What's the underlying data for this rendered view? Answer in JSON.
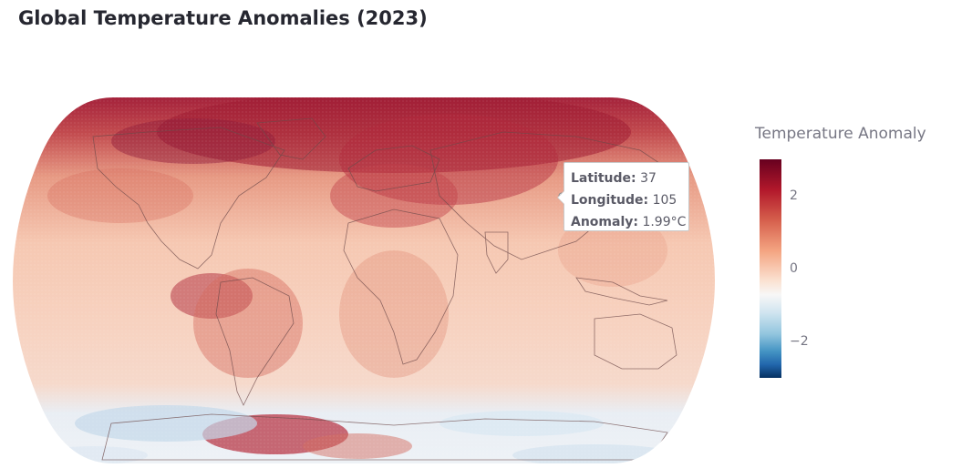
{
  "title": "Global Temperature Anomalies (2023)",
  "map": {
    "projection": "natural-earth",
    "colorscale": "RdBu (reversed)",
    "colors": {
      "warm_max": "#67001f",
      "neutral": "#f7f7f7",
      "cold_max": "#053061"
    }
  },
  "tooltip": {
    "lat_label": "Latitude:",
    "lat_value": "37",
    "lon_label": "Longitude:",
    "lon_value": "105",
    "anom_label": "Anomaly:",
    "anom_value": "1.99°C"
  },
  "legend": {
    "title": "Temperature Anomaly",
    "tick_high": "2",
    "tick_mid": "0",
    "tick_low": "−2",
    "range": [
      -3,
      3
    ]
  }
}
